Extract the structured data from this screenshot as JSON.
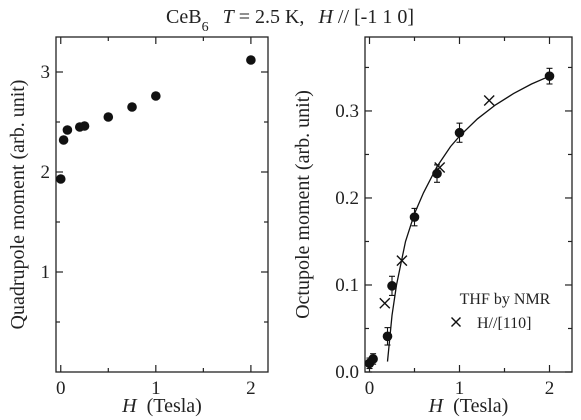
{
  "title": {
    "compound": "CeB",
    "compound_sub": "6",
    "temp_symbol": "T",
    "temp_value": " = 2.5 K,",
    "field_symbol": "H",
    "field_dir": " // [-1 1 0]"
  },
  "chart_data": [
    {
      "type": "scatter",
      "xlabel_symbol": "H",
      "xlabel_unit": "(Tesla)",
      "ylabel": "Quadrupole moment  (arb. unit)",
      "xlim": [
        -0.05,
        2.18
      ],
      "ylim": [
        0.0,
        3.35
      ],
      "xticks": [
        0,
        1,
        2
      ],
      "xtick_labels": [
        "0",
        "1",
        "2"
      ],
      "yticks": [
        1,
        2,
        3
      ],
      "ytick_labels": [
        "1",
        "2",
        "3"
      ],
      "grid": false,
      "series": [
        {
          "marker": "filled-circle",
          "x": [
            0.0,
            0.03,
            0.07,
            0.2,
            0.25,
            0.5,
            0.75,
            1.0,
            2.0
          ],
          "y": [
            1.93,
            2.32,
            2.42,
            2.45,
            2.46,
            2.55,
            2.65,
            2.76,
            3.12
          ]
        }
      ]
    },
    {
      "type": "scatter",
      "xlabel_symbol": "H",
      "xlabel_unit": "(Tesla)",
      "ylabel": "Octupole moment  (arb. unit)",
      "xlim": [
        -0.05,
        2.25
      ],
      "ylim": [
        0.0,
        0.385
      ],
      "xticks": [
        0,
        1,
        2
      ],
      "xtick_labels": [
        "0",
        "1",
        "2"
      ],
      "yticks": [
        0.0,
        0.1,
        0.2,
        0.3
      ],
      "ytick_labels": [
        "0.0",
        "0.1",
        "0.2",
        "0.3"
      ],
      "grid": false,
      "legend_title": "THF by NMR",
      "legend_entry": "H//[110]",
      "legend_position": "bottom-right",
      "series": [
        {
          "marker": "filled-circle",
          "x": [
            0.0,
            0.04,
            0.2,
            0.25,
            0.5,
            0.75,
            1.0,
            2.0
          ],
          "y": [
            0.01,
            0.015,
            0.041,
            0.099,
            0.178,
            0.228,
            0.275,
            0.34
          ],
          "err": [
            0.006,
            0.006,
            0.01,
            0.011,
            0.01,
            0.01,
            0.011,
            0.009
          ]
        },
        {
          "marker": "cross",
          "name": "H//[110]",
          "x": [
            0.17,
            0.36,
            0.78,
            1.33
          ],
          "y": [
            0.079,
            0.128,
            0.235,
            0.312
          ]
        }
      ],
      "fit_curve": {
        "x": [
          0.2,
          0.25,
          0.3,
          0.4,
          0.5,
          0.6,
          0.75,
          0.9,
          1.0,
          1.2,
          1.4,
          1.6,
          1.8,
          2.0
        ],
        "y": [
          0.012,
          0.065,
          0.1,
          0.15,
          0.182,
          0.206,
          0.236,
          0.259,
          0.271,
          0.291,
          0.307,
          0.32,
          0.331,
          0.34
        ]
      }
    }
  ]
}
